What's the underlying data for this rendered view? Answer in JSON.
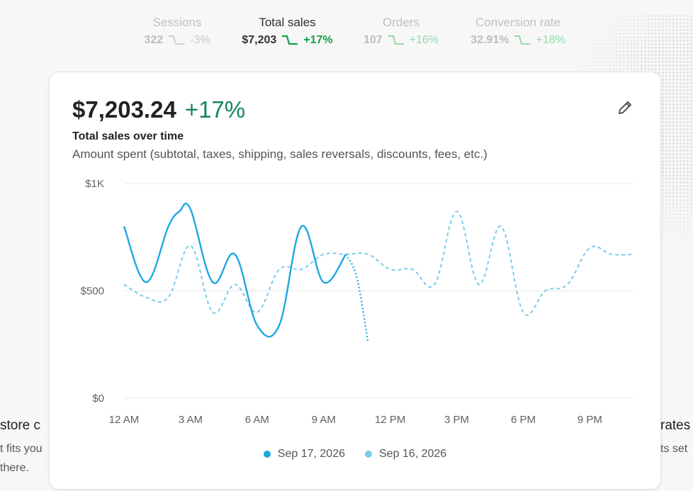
{
  "metrics": [
    {
      "label": "Sessions",
      "value": "322",
      "change": "-3%",
      "state": "inactive"
    },
    {
      "label": "Total sales",
      "value": "$7,203",
      "change": "+17%",
      "state": "active"
    },
    {
      "label": "Orders",
      "value": "107",
      "change": "+16%",
      "state": "green"
    },
    {
      "label": "Conversion rate",
      "value": "32.91%",
      "change": "+18%",
      "state": "green"
    }
  ],
  "background": {
    "left_title": "store c",
    "left_line1": "t fits you",
    "left_line2": "there.",
    "right_title": "rates",
    "right_line1": "ts set"
  },
  "card": {
    "amount": "$7,203.24",
    "change": "+17%",
    "title": "Total sales over time",
    "description": "Amount spent (subtotal, taxes, shipping, sales reversals, discounts, fees, etc.)",
    "edit_icon": "pencil-icon"
  },
  "colors": {
    "primary": "#1ca7e2",
    "comparison": "#7ccbea",
    "positive": "#17855a"
  },
  "legend": [
    {
      "label": "Sep 17, 2026",
      "color": "#1ca7e2"
    },
    {
      "label": "Sep 16, 2026",
      "color": "#7ccbea"
    }
  ],
  "chart_data": {
    "type": "line",
    "ylim": [
      0,
      1000
    ],
    "y_ticks": [
      "$0",
      "$500",
      "$1K"
    ],
    "y_tick_values": [
      0,
      500,
      1000
    ],
    "x_ticks": [
      "12 AM",
      "3 AM",
      "6 AM",
      "9 AM",
      "12 PM",
      "3 PM",
      "6 PM",
      "9 PM"
    ],
    "x_tick_hours": [
      0,
      3,
      6,
      9,
      12,
      15,
      18,
      21
    ],
    "x_range": [
      0,
      23
    ],
    "grid": true,
    "legend_position": "bottom",
    "series": [
      {
        "name": "Sep 17, 2026",
        "style": "solid",
        "x": [
          0,
          1,
          2,
          2.5,
          3,
          4,
          5,
          6,
          7,
          8,
          9,
          10
        ],
        "values": [
          800,
          540,
          800,
          870,
          880,
          540,
          670,
          340,
          340,
          800,
          540,
          670
        ],
        "dotted_tail": {
          "x": [
            10,
            10.5,
            11
          ],
          "values": [
            670,
            560,
            260
          ]
        }
      },
      {
        "name": "Sep 16, 2026",
        "style": "dashed",
        "x": [
          0,
          1,
          2,
          3,
          4,
          5,
          6,
          7,
          8,
          9,
          10,
          11,
          12,
          13,
          14,
          15,
          16,
          17,
          18,
          19,
          20,
          21,
          22,
          23
        ],
        "values": [
          530,
          470,
          470,
          710,
          400,
          530,
          400,
          600,
          600,
          670,
          670,
          670,
          600,
          600,
          530,
          870,
          530,
          800,
          400,
          500,
          530,
          700,
          670,
          670
        ]
      }
    ]
  }
}
